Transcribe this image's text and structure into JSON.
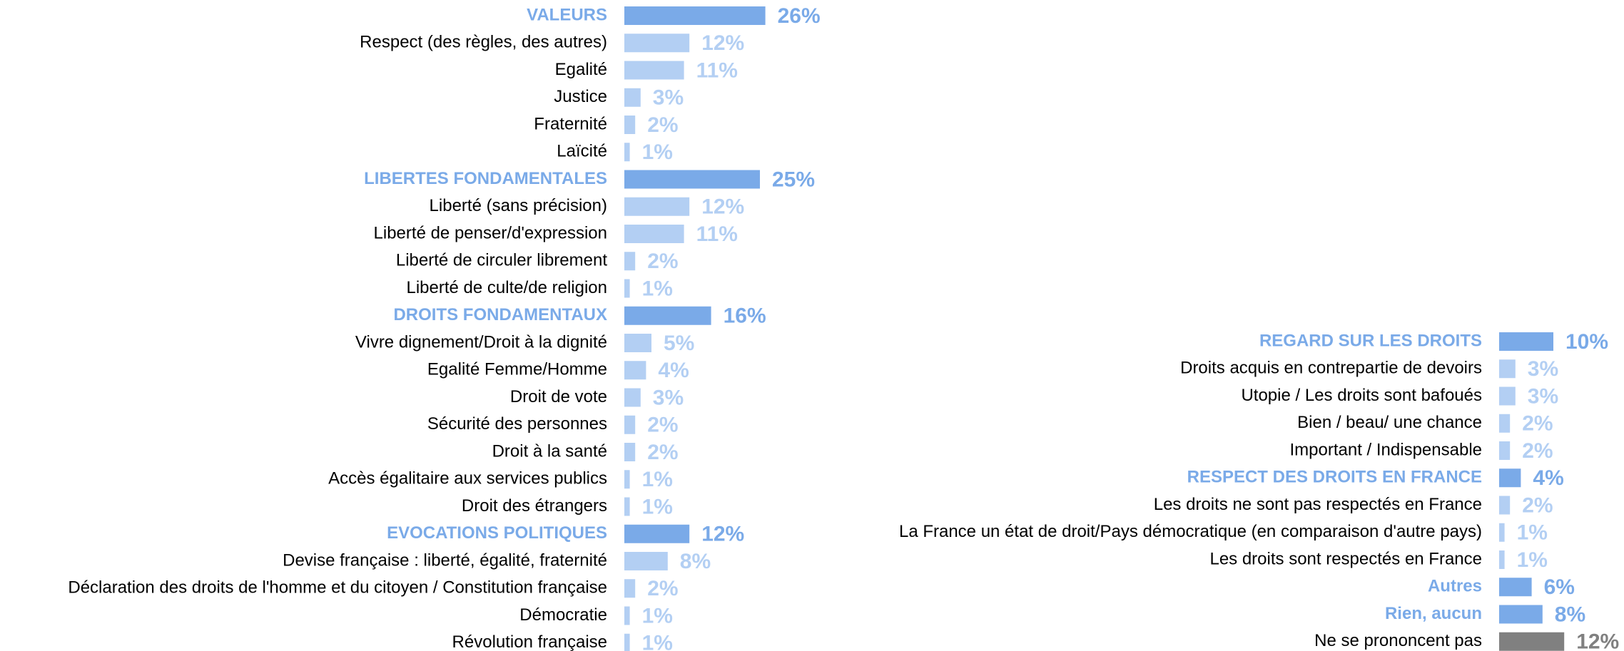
{
  "chart_data": [
    {
      "type": "bar",
      "orientation": "horizontal",
      "categories": [
        "VALEURS",
        "Respect (des règles, des autres)",
        "Egalité",
        "Justice",
        "Fraternité",
        "Laïcité",
        "LIBERTES FONDAMENTALES",
        "Liberté (sans précision)",
        "Liberté de penser/d'expression",
        "Liberté de circuler librement",
        "Liberté de culte/de religion",
        "DROITS FONDAMENTAUX",
        "Vivre dignement/Droit à la dignité",
        "Egalité Femme/Homme",
        "Droit de vote",
        "Sécurité des personnes",
        "Droit à la santé",
        "Accès égalitaire aux services publics",
        "Droit des étrangers",
        "EVOCATIONS POLITIQUES",
        "Devise française : liberté, égalité, fraternité",
        "Déclaration des droits de l'homme et du citoyen / Constitution française",
        "Démocratie",
        "Révolution française"
      ],
      "values": [
        26,
        12,
        11,
        3,
        2,
        1,
        25,
        12,
        11,
        2,
        1,
        16,
        5,
        4,
        3,
        2,
        2,
        1,
        1,
        12,
        8,
        2,
        1,
        1
      ],
      "value_labels": [
        "26%",
        "12%",
        "11%",
        "3%",
        "2%",
        "1%",
        "25%",
        "12%",
        "11%",
        "2%",
        "1%",
        "16%",
        "5%",
        "4%",
        "3%",
        "2%",
        "2%",
        "1%",
        "1%",
        "12%",
        "8%",
        "2%",
        "1%",
        "1%"
      ],
      "colors": [
        "#7aaae8",
        "#b3cff3",
        "#b3cff3",
        "#b3cff3",
        "#b3cff3",
        "#b3cff3",
        "#7aaae8",
        "#b3cff3",
        "#b3cff3",
        "#b3cff3",
        "#b3cff3",
        "#7aaae8",
        "#b3cff3",
        "#b3cff3",
        "#b3cff3",
        "#b3cff3",
        "#b3cff3",
        "#b3cff3",
        "#b3cff3",
        "#7aaae8",
        "#b3cff3",
        "#b3cff3",
        "#b3cff3",
        "#b3cff3"
      ],
      "label_colors": [
        "#7aaae8",
        "#000000",
        "#000000",
        "#000000",
        "#000000",
        "#000000",
        "#7aaae8",
        "#000000",
        "#000000",
        "#000000",
        "#000000",
        "#7aaae8",
        "#000000",
        "#000000",
        "#000000",
        "#000000",
        "#000000",
        "#000000",
        "#000000",
        "#7aaae8",
        "#000000",
        "#000000",
        "#000000",
        "#000000"
      ]
    },
    {
      "type": "bar",
      "orientation": "horizontal",
      "categories": [
        "REGARD SUR LES DROITS",
        "Droits acquis en contrepartie de devoirs",
        "Utopie / Les droits sont bafoués",
        "Bien / beau/ une chance",
        "Important / Indispensable",
        "RESPECT DES DROITS EN FRANCE",
        "Les droits ne sont pas respectés en France",
        "La France un état de droit/Pays démocratique (en comparaison d'autre pays)",
        "Les droits sont respectés en France",
        "Autres",
        "Rien, aucun",
        "Ne se prononcent pas"
      ],
      "values": [
        10,
        3,
        3,
        2,
        2,
        4,
        2,
        1,
        1,
        6,
        8,
        12
      ],
      "value_labels": [
        "10%",
        "3%",
        "3%",
        "2%",
        "2%",
        "4%",
        "2%",
        "1%",
        "1%",
        "6%",
        "8%",
        "12%"
      ],
      "colors": [
        "#7aaae8",
        "#b3cff3",
        "#b3cff3",
        "#b3cff3",
        "#b3cff3",
        "#7aaae8",
        "#b3cff3",
        "#b3cff3",
        "#b3cff3",
        "#7aaae8",
        "#7aaae8",
        "#808080"
      ],
      "label_colors": [
        "#7aaae8",
        "#000000",
        "#000000",
        "#000000",
        "#000000",
        "#7aaae8",
        "#000000",
        "#000000",
        "#000000",
        "#7aaae8",
        "#7aaae8",
        "#000000"
      ]
    }
  ]
}
